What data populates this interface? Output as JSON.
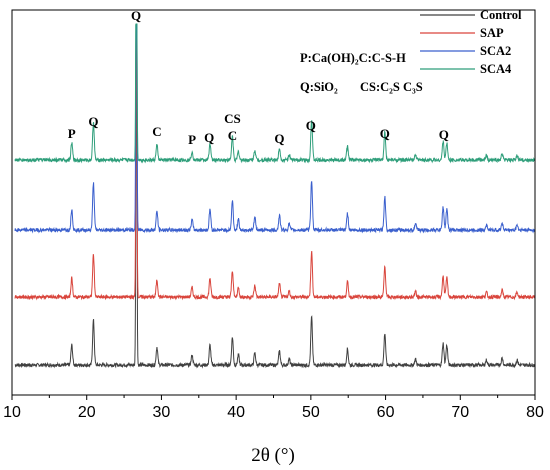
{
  "chart_data": {
    "type": "line",
    "xlabel": "2θ (°)",
    "ylabel": "",
    "xlim": [
      10,
      80
    ],
    "x_ticks": [
      10,
      20,
      30,
      40,
      50,
      60,
      70,
      80
    ],
    "grid": false,
    "legend_position": "top-right",
    "series": [
      {
        "name": "Control",
        "color": "#404040",
        "stack_order": 0
      },
      {
        "name": "SAP",
        "color": "#d9453c",
        "stack_order": 1
      },
      {
        "name": "SCA2",
        "color": "#3a5fcd",
        "stack_order": 2
      },
      {
        "name": "SCA4",
        "color": "#2e9e7a",
        "stack_order": 3
      }
    ],
    "peaks": [
      {
        "x": 18.0,
        "intensity": 0.2
      },
      {
        "x": 20.9,
        "intensity": 0.45
      },
      {
        "x": 26.65,
        "intensity": 3.6,
        "sharp": true
      },
      {
        "x": 29.4,
        "intensity": 0.18
      },
      {
        "x": 34.1,
        "intensity": 0.1
      },
      {
        "x": 36.5,
        "intensity": 0.2
      },
      {
        "x": 39.5,
        "intensity": 0.28
      },
      {
        "x": 40.3,
        "intensity": 0.1
      },
      {
        "x": 42.5,
        "intensity": 0.12
      },
      {
        "x": 45.8,
        "intensity": 0.14
      },
      {
        "x": 47.1,
        "intensity": 0.06
      },
      {
        "x": 50.1,
        "intensity": 0.48
      },
      {
        "x": 54.9,
        "intensity": 0.16
      },
      {
        "x": 59.9,
        "intensity": 0.32
      },
      {
        "x": 64.0,
        "intensity": 0.06
      },
      {
        "x": 67.7,
        "intensity": 0.22
      },
      {
        "x": 68.2,
        "intensity": 0.2
      },
      {
        "x": 73.5,
        "intensity": 0.05
      },
      {
        "x": 75.6,
        "intensity": 0.07
      },
      {
        "x": 77.6,
        "intensity": 0.05
      }
    ],
    "annotations": [
      {
        "text": "Q",
        "x": 26.6
      },
      {
        "text": "P",
        "x": 18.0
      },
      {
        "text": "Q",
        "x": 20.9
      },
      {
        "text": "C",
        "x": 29.4
      },
      {
        "text": "P",
        "x": 34.1
      },
      {
        "text": "Q",
        "x": 36.4
      },
      {
        "text": "CS",
        "x": 39.5
      },
      {
        "text": "C",
        "x": 39.5
      },
      {
        "text": "Q",
        "x": 45.8
      },
      {
        "text": "Q",
        "x": 50.0
      },
      {
        "text": "Q",
        "x": 59.9
      },
      {
        "text": "Q",
        "x": 67.8
      }
    ],
    "notes": {
      "line1": "P:Ca(OH)₂C:C-S-H",
      "line2_a": "Q:SiO₂",
      "line2_b": "CS:C₂S  C₃S"
    }
  }
}
